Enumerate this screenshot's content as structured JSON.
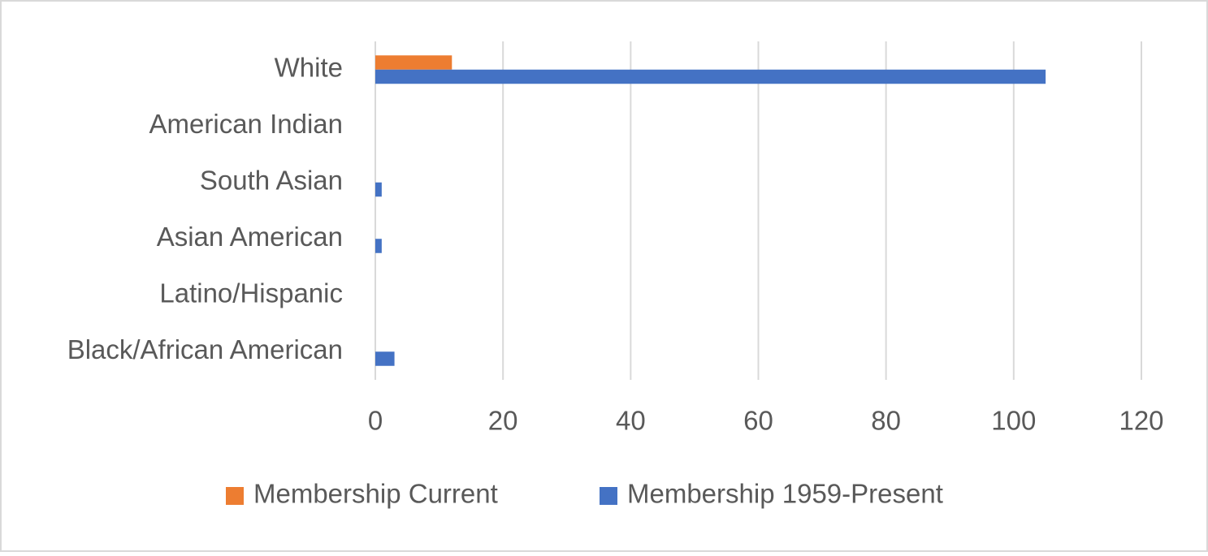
{
  "chart_data": {
    "type": "bar",
    "orientation": "horizontal",
    "categories": [
      "White",
      "American Indian",
      "South Asian",
      "Asian American",
      "Latino/Hispanic",
      "Black/African American"
    ],
    "series": [
      {
        "name": "Membership Current",
        "color": "#ed7d31",
        "values": [
          12,
          0,
          0,
          0,
          0,
          0
        ]
      },
      {
        "name": "Membership 1959-Present",
        "color": "#4472c4",
        "values": [
          105,
          0,
          1,
          1,
          0,
          3
        ]
      }
    ],
    "xlim": [
      0,
      120
    ],
    "xticks": [
      0,
      20,
      40,
      60,
      80,
      100,
      120
    ],
    "grid": true,
    "legend": "bottom"
  }
}
